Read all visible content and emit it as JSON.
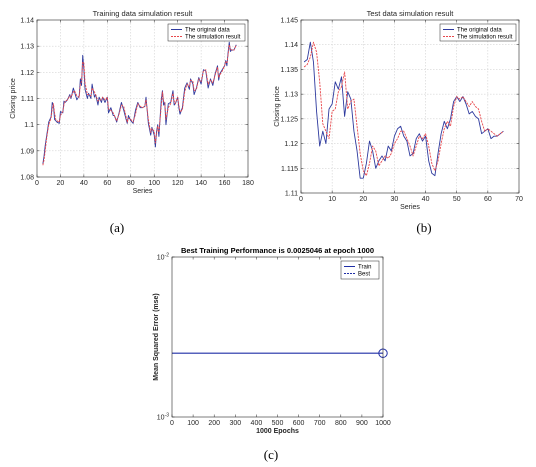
{
  "chart_data": [
    {
      "type": "line",
      "title": "Training data simulation result",
      "xlabel": "Series",
      "ylabel": "Closing price",
      "xlim": [
        0,
        180
      ],
      "ylim": [
        1.08,
        1.14
      ],
      "xticks": [
        0,
        20,
        40,
        60,
        80,
        100,
        120,
        140,
        160,
        180
      ],
      "yticks": [
        1.08,
        1.09,
        1.1,
        1.11,
        1.12,
        1.13,
        1.14
      ],
      "ytick_labels": [
        "1.08",
        "1.09",
        "1.1",
        "1.11",
        "1.12",
        "1.13",
        "1.14"
      ],
      "grid": true,
      "legend_position": "top-right",
      "caption": "(a)",
      "series": [
        {
          "name": "The original data",
          "color": "#2e3a9e",
          "x": [
            5,
            6,
            7,
            8,
            9,
            10,
            12,
            13,
            14,
            15,
            16,
            17,
            19,
            20,
            22,
            23,
            24,
            26,
            28,
            29,
            31,
            32,
            34,
            36,
            37,
            38,
            39,
            40,
            41,
            43,
            44,
            46,
            47,
            49,
            50,
            52,
            53,
            55,
            56,
            58,
            60,
            61,
            63,
            65,
            66,
            68,
            70,
            72,
            74,
            76,
            77,
            78,
            80,
            82,
            84,
            86,
            88,
            90,
            92,
            93,
            95,
            97,
            98,
            100,
            101,
            102,
            103,
            104,
            106,
            107,
            108,
            109,
            110,
            112,
            114,
            116,
            117,
            118,
            120,
            121,
            122,
            124,
            126,
            128,
            130,
            131,
            133,
            134,
            136,
            138,
            140,
            142,
            144,
            146,
            148,
            150,
            152,
            154,
            155,
            156,
            158,
            160,
            161,
            162,
            163,
            164,
            165,
            166,
            168,
            170
          ],
          "y": [
            1.085,
            1.088,
            1.092,
            1.095,
            1.098,
            1.101,
            1.103,
            1.1085,
            1.1075,
            1.102,
            1.1015,
            1.101,
            1.1005,
            1.105,
            1.1045,
            1.109,
            1.1085,
            1.1095,
            1.1115,
            1.11,
            1.114,
            1.1125,
            1.1095,
            1.111,
            1.1175,
            1.115,
            1.1265,
            1.121,
            1.1135,
            1.11,
            1.112,
            1.11,
            1.1155,
            1.1105,
            1.1115,
            1.1075,
            1.1105,
            1.1085,
            1.1105,
            1.1085,
            1.1105,
            1.1045,
            1.1065,
            1.1035,
            1.1035,
            1.101,
            1.1045,
            1.1085,
            1.1055,
            1.102,
            1.1005,
            1.1035,
            1.1015,
            1.1005,
            1.1055,
            1.1085,
            1.1065,
            1.1065,
            1.107,
            1.1105,
            1.1005,
            1.096,
            1.099,
            1.096,
            1.0915,
            1.0975,
            1.1,
            1.0955,
            1.1095,
            1.113,
            1.1075,
            1.1085,
            1.1,
            1.108,
            1.1085,
            1.113,
            1.1075,
            1.108,
            1.1105,
            1.1065,
            1.104,
            1.1065,
            1.114,
            1.116,
            1.1135,
            1.1175,
            1.1155,
            1.1115,
            1.114,
            1.118,
            1.1155,
            1.121,
            1.1205,
            1.114,
            1.1175,
            1.115,
            1.1195,
            1.1225,
            1.117,
            1.1195,
            1.121,
            1.1225,
            1.1245,
            1.1225,
            1.1275,
            1.1315,
            1.128,
            1.1285,
            1.1285,
            1.1305
          ]
        },
        {
          "name": "The simulation result",
          "color": "#e8484c",
          "x": [
            5,
            6,
            7,
            8,
            9,
            10,
            12,
            13,
            14,
            15,
            16,
            17,
            19,
            20,
            22,
            23,
            24,
            26,
            28,
            29,
            31,
            32,
            34,
            36,
            37,
            38,
            39,
            40,
            41,
            43,
            44,
            46,
            47,
            49,
            50,
            52,
            53,
            55,
            56,
            58,
            60,
            61,
            63,
            65,
            66,
            68,
            70,
            72,
            74,
            76,
            77,
            78,
            80,
            82,
            84,
            86,
            88,
            90,
            92,
            93,
            95,
            97,
            98,
            100,
            101,
            102,
            103,
            104,
            106,
            107,
            108,
            109,
            110,
            112,
            114,
            116,
            117,
            118,
            120,
            121,
            122,
            124,
            126,
            128,
            130,
            131,
            133,
            134,
            136,
            138,
            140,
            142,
            144,
            146,
            148,
            150,
            152,
            154,
            155,
            156,
            158,
            160,
            161,
            162,
            163,
            164,
            165,
            166,
            168,
            170
          ],
          "y": [
            1.0845,
            1.0865,
            1.09,
            1.094,
            1.097,
            1.1,
            1.1025,
            1.106,
            1.108,
            1.1045,
            1.102,
            1.1015,
            1.101,
            1.1035,
            1.105,
            1.1075,
            1.109,
            1.1095,
            1.111,
            1.1105,
            1.1125,
            1.113,
            1.111,
            1.1105,
            1.1155,
            1.1165,
            1.124,
            1.1235,
            1.116,
            1.1115,
            1.1115,
            1.111,
            1.114,
            1.1125,
            1.1115,
            1.109,
            1.1095,
            1.1095,
            1.1105,
            1.1095,
            1.1105,
            1.106,
            1.1055,
            1.1045,
            1.1035,
            1.1015,
            1.104,
            1.1075,
            1.107,
            1.103,
            1.101,
            1.1025,
            1.102,
            1.101,
            1.104,
            1.108,
            1.107,
            1.1065,
            1.107,
            1.1095,
            1.102,
            1.097,
            1.0985,
            1.0975,
            1.093,
            1.0965,
            1.0995,
            1.097,
            1.107,
            1.1125,
            1.109,
            1.1085,
            1.102,
            1.1065,
            1.108,
            1.112,
            1.109,
            1.108,
            1.1105,
            1.1075,
            1.105,
            1.1055,
            1.1125,
            1.1155,
            1.1145,
            1.117,
            1.1165,
            1.113,
            1.1135,
            1.1175,
            1.1165,
            1.1205,
            1.121,
            1.1155,
            1.117,
            1.116,
            1.119,
            1.122,
            1.118,
            1.119,
            1.1205,
            1.1225,
            1.124,
            1.1235,
            1.1265,
            1.1305,
            1.129,
            1.1285,
            1.1285,
            1.1305
          ]
        }
      ]
    },
    {
      "type": "line",
      "title": "Test data simulation result",
      "xlabel": "Series",
      "ylabel": "Closing price",
      "xlim": [
        0,
        70
      ],
      "ylim": [
        1.11,
        1.145
      ],
      "xticks": [
        0,
        10,
        20,
        30,
        40,
        50,
        60,
        70
      ],
      "yticks": [
        1.11,
        1.115,
        1.12,
        1.125,
        1.13,
        1.135,
        1.14,
        1.145
      ],
      "ytick_labels": [
        "1.11",
        "1.115",
        "1.12",
        "1.125",
        "1.13",
        "1.135",
        "1.14",
        "1.145"
      ],
      "grid": true,
      "legend_position": "top-right",
      "caption": "(b)",
      "series": [
        {
          "name": "The original data",
          "color": "#2e3a9e",
          "x": [
            1,
            2,
            3,
            4,
            5,
            6,
            7,
            8,
            9,
            10,
            11,
            12,
            13,
            14,
            15,
            16,
            17,
            18,
            19,
            20,
            21,
            22,
            23,
            24,
            25,
            26,
            27,
            28,
            29,
            30,
            31,
            32,
            33,
            34,
            35,
            36,
            37,
            38,
            39,
            40,
            41,
            42,
            43,
            44,
            45,
            46,
            47,
            48,
            49,
            50,
            51,
            52,
            53,
            54,
            55,
            56,
            57,
            58,
            59,
            60,
            61,
            62,
            63,
            64,
            65
          ],
          "y": [
            1.1365,
            1.137,
            1.1405,
            1.1365,
            1.1265,
            1.1195,
            1.1225,
            1.12,
            1.127,
            1.128,
            1.1325,
            1.131,
            1.1335,
            1.1255,
            1.1305,
            1.129,
            1.1225,
            1.1185,
            1.113,
            1.113,
            1.116,
            1.1205,
            1.1185,
            1.115,
            1.1165,
            1.1175,
            1.1165,
            1.1195,
            1.1185,
            1.1215,
            1.123,
            1.1235,
            1.1215,
            1.1205,
            1.1175,
            1.118,
            1.121,
            1.122,
            1.1205,
            1.1215,
            1.1165,
            1.114,
            1.1135,
            1.118,
            1.122,
            1.1245,
            1.123,
            1.125,
            1.1285,
            1.1295,
            1.1285,
            1.1295,
            1.128,
            1.126,
            1.1265,
            1.1255,
            1.125,
            1.122,
            1.1225,
            1.123,
            1.121,
            1.1215,
            1.1215,
            1.122,
            1.1225
          ]
        },
        {
          "name": "The simulation result",
          "color": "#e8484c",
          "x": [
            1,
            2,
            3,
            4,
            5,
            6,
            7,
            8,
            9,
            10,
            11,
            12,
            13,
            14,
            15,
            16,
            17,
            18,
            19,
            20,
            21,
            22,
            23,
            24,
            25,
            26,
            27,
            28,
            29,
            30,
            31,
            32,
            33,
            34,
            35,
            36,
            37,
            38,
            39,
            40,
            41,
            42,
            43,
            44,
            45,
            46,
            47,
            48,
            49,
            50,
            51,
            52,
            53,
            54,
            55,
            56,
            57,
            58,
            59,
            60,
            61,
            62,
            63,
            64,
            65
          ],
          "y": [
            1.1355,
            1.136,
            1.1375,
            1.1405,
            1.1385,
            1.1325,
            1.124,
            1.1225,
            1.121,
            1.1265,
            1.127,
            1.1305,
            1.1315,
            1.1345,
            1.127,
            1.1285,
            1.129,
            1.1235,
            1.118,
            1.1145,
            1.1135,
            1.116,
            1.1195,
            1.1185,
            1.1155,
            1.1165,
            1.1175,
            1.117,
            1.118,
            1.12,
            1.121,
            1.1225,
            1.1225,
            1.121,
            1.1195,
            1.1175,
            1.1195,
            1.1215,
            1.121,
            1.122,
            1.1195,
            1.116,
            1.1145,
            1.1165,
            1.12,
            1.123,
            1.1245,
            1.1235,
            1.1275,
            1.1295,
            1.129,
            1.1295,
            1.1285,
            1.1275,
            1.1285,
            1.1275,
            1.127,
            1.1245,
            1.1225,
            1.123,
            1.1225,
            1.122,
            1.1215,
            1.122,
            1.1225
          ]
        }
      ]
    },
    {
      "type": "line",
      "title": "Best Training Performance is 0.0025046 at epoch 1000",
      "xlabel": "1000 Epochs",
      "ylabel": "Mean Squared Error  (mse)",
      "xlim": [
        0,
        1000
      ],
      "ylim": [
        0.001,
        0.01
      ],
      "yscale": "log",
      "xticks": [
        0,
        100,
        200,
        300,
        400,
        500,
        600,
        700,
        800,
        900,
        1000
      ],
      "yticks": [
        0.001,
        0.01
      ],
      "ytick_labels": [
        {
          "base": "10",
          "exp": "-3"
        },
        {
          "base": "10",
          "exp": "-2"
        }
      ],
      "grid": false,
      "legend_position": "top-right",
      "caption": "(c)",
      "series": [
        {
          "name": "Train",
          "color": "#1f2ea6",
          "x": [
            0,
            1000
          ],
          "y": [
            0.0025046,
            0.0025046
          ]
        },
        {
          "name": "Best",
          "color": "#1f2ea6",
          "dashed": true,
          "marker": "circle",
          "x": [
            1000
          ],
          "y": [
            0.0025046
          ]
        }
      ]
    }
  ]
}
